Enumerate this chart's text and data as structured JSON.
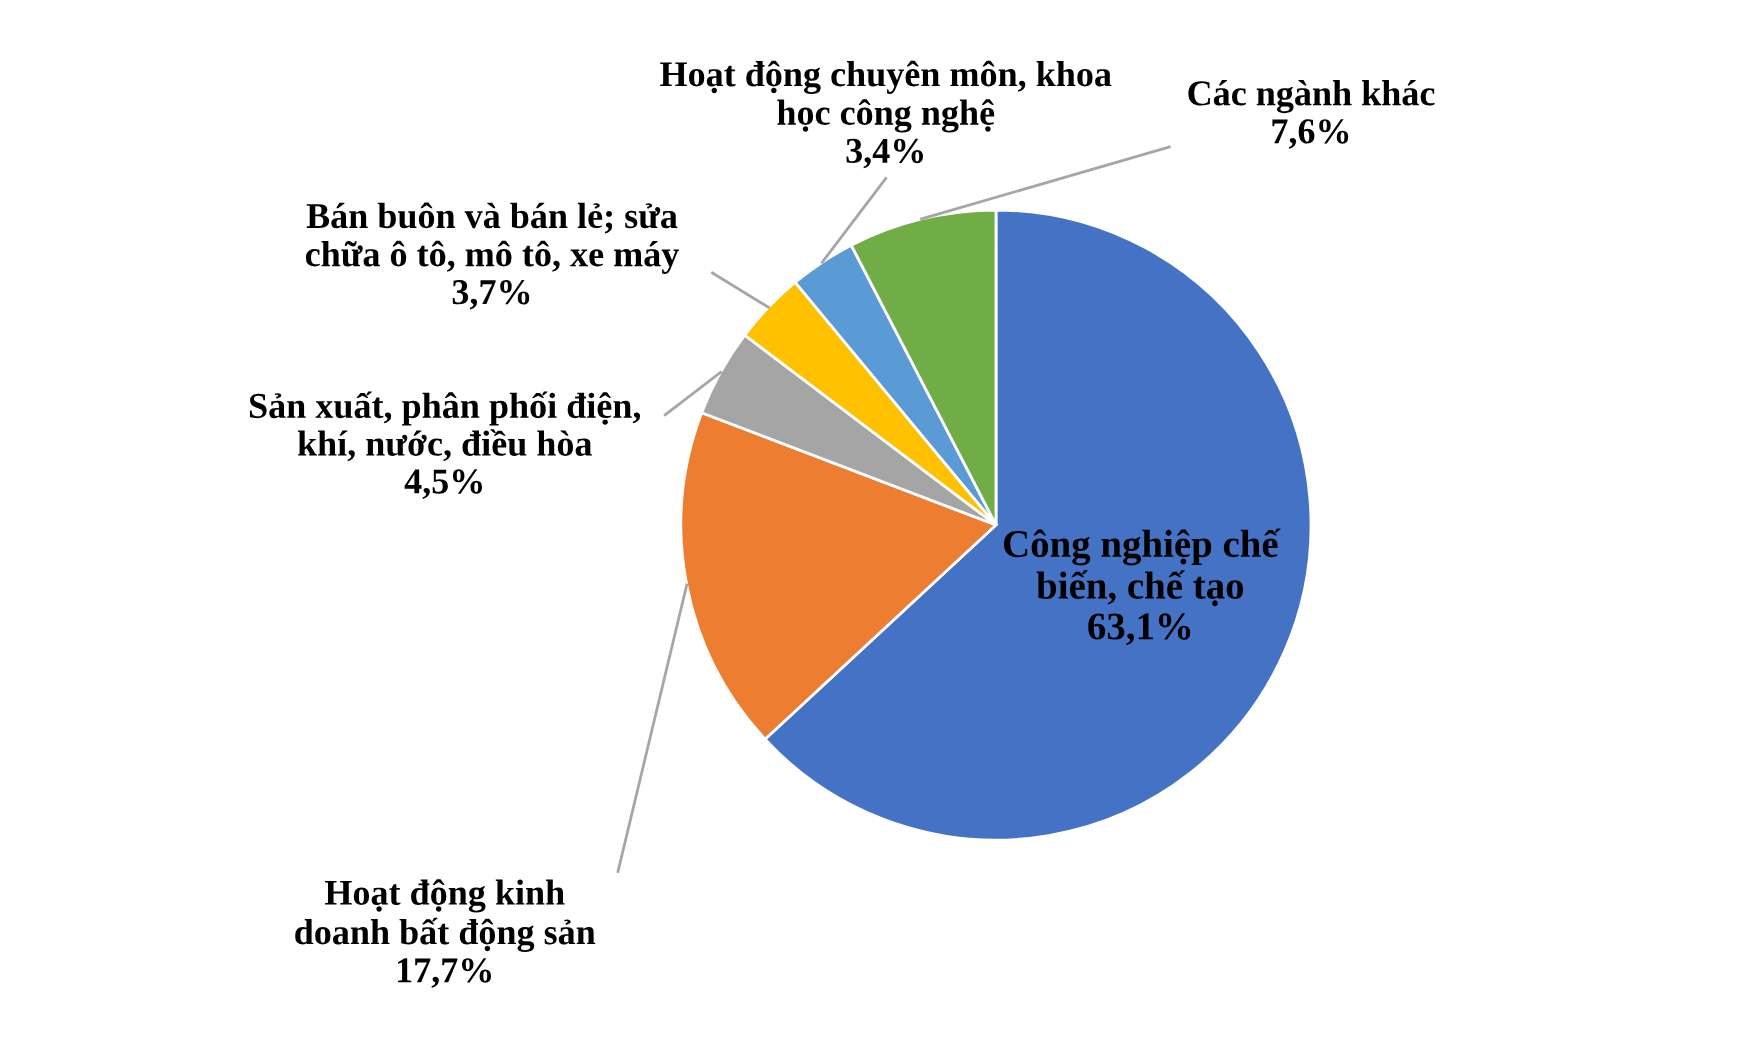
{
  "chart_data": {
    "type": "pie",
    "categories": [
      "Công nghiệp chế\nbiến, chế tạo",
      "Hoạt động kinh\ndoanh bất động sản",
      "Sản xuất, phân phối điện,\nkhí, nước, điều hòa",
      "Bán buôn và bán lẻ; sửa\nchữa ô tô, mô tô, xe máy",
      "Hoạt động chuyên môn, khoa\nhọc công nghệ",
      "Các ngành khác"
    ],
    "values": [
      63.1,
      17.7,
      4.5,
      3.7,
      3.4,
      7.6
    ],
    "value_labels": [
      "63,1%",
      "17,7%",
      "4,5%",
      "3,7%",
      "3,4%",
      "7,6%"
    ],
    "colors": [
      "#4472c4",
      "#ed7d31",
      "#a5a5a5",
      "#ffc000",
      "#5b9bd5",
      "#70ad47"
    ]
  }
}
